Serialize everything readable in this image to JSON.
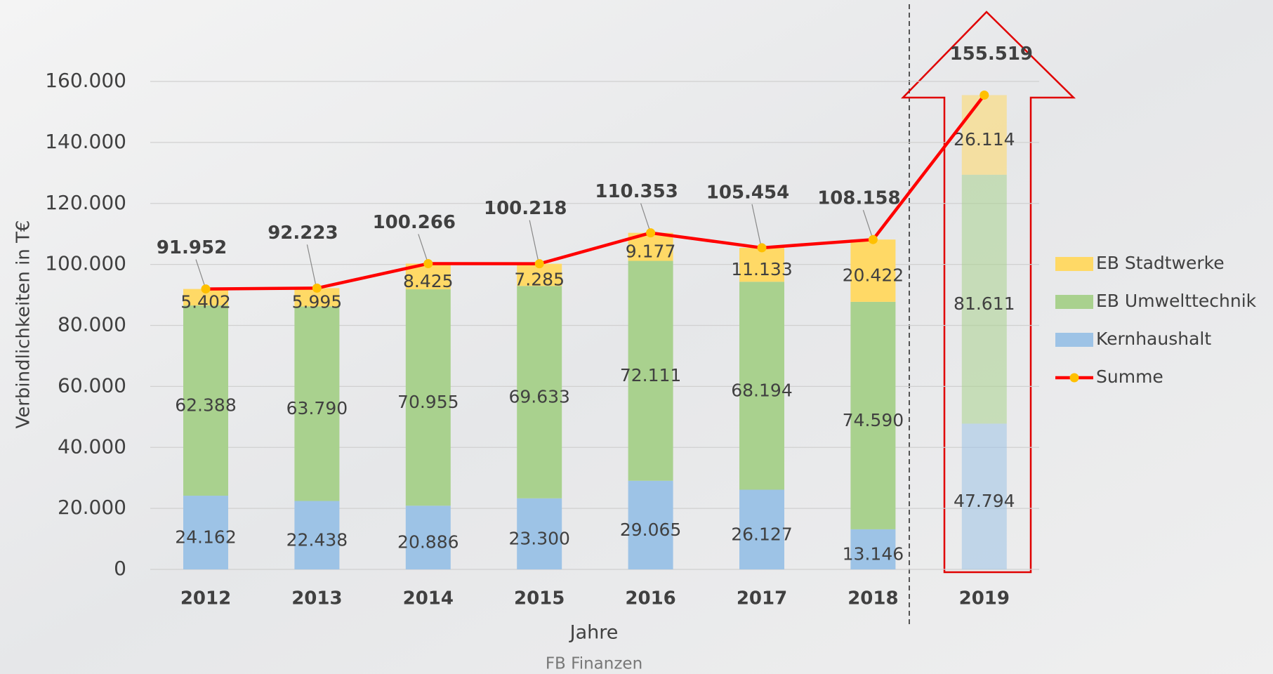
{
  "chart_data": {
    "type": "bar",
    "stacked": true,
    "ylabel": "Verbindlichkeiten in T€",
    "xlabel": "Jahre",
    "source": "FB Finanzen",
    "categories": [
      "2012",
      "2013",
      "2014",
      "2015",
      "2016",
      "2017",
      "2018",
      "2019"
    ],
    "ylim": [
      0,
      160000
    ],
    "yticks": [
      0,
      {
        "value": 20000,
        "label": "20.000"
      },
      {
        "value": 40000,
        "label": "40.000"
      },
      {
        "value": 60000,
        "label": "60.000"
      },
      {
        "value": 80000,
        "label": "80.000"
      },
      {
        "value": 100000,
        "label": "100.000"
      },
      {
        "value": 120000,
        "label": "120.000"
      },
      {
        "value": 140000,
        "label": "140.000"
      },
      {
        "value": 160000,
        "label": "160.000"
      }
    ],
    "grid": true,
    "legend": "right",
    "series": [
      {
        "name": "Kernhaushalt",
        "type": "bar",
        "color": "#9dc3e6",
        "values": [
          24162,
          22438,
          20886,
          23300,
          29065,
          26127,
          13146,
          47794
        ],
        "value_labels": [
          "24.162",
          "22.438",
          "20.886",
          "23.300",
          "29.065",
          "26.127",
          "13.146",
          "47.794"
        ]
      },
      {
        "name": "EB Umwelttechnik",
        "type": "bar",
        "color": "#a9d18e",
        "values": [
          62388,
          63790,
          70955,
          69633,
          72111,
          68194,
          74590,
          81611
        ],
        "value_labels": [
          "62.388",
          "63.790",
          "70.955",
          "69.633",
          "72.111",
          "68.194",
          "74.590",
          "81.611"
        ]
      },
      {
        "name": "EB Stadtwerke",
        "type": "bar",
        "color": "#ffd966",
        "values": [
          5402,
          5995,
          8425,
          7285,
          9177,
          11133,
          20422,
          26114
        ],
        "value_labels": [
          "5.402",
          "5.995",
          "8.425",
          "7.285",
          "9.177",
          "11.133",
          "20.422",
          "26.114"
        ]
      },
      {
        "name": "Summe",
        "type": "line",
        "color": "#ff0000",
        "marker_color": "#ffc000",
        "values": [
          91952,
          92223,
          100266,
          100218,
          110353,
          105454,
          108158,
          155519
        ],
        "value_labels": [
          "91.952",
          "92.223",
          "100.266",
          "100.218",
          "110.353",
          "105.454",
          "108.158",
          "155.519"
        ]
      }
    ]
  }
}
